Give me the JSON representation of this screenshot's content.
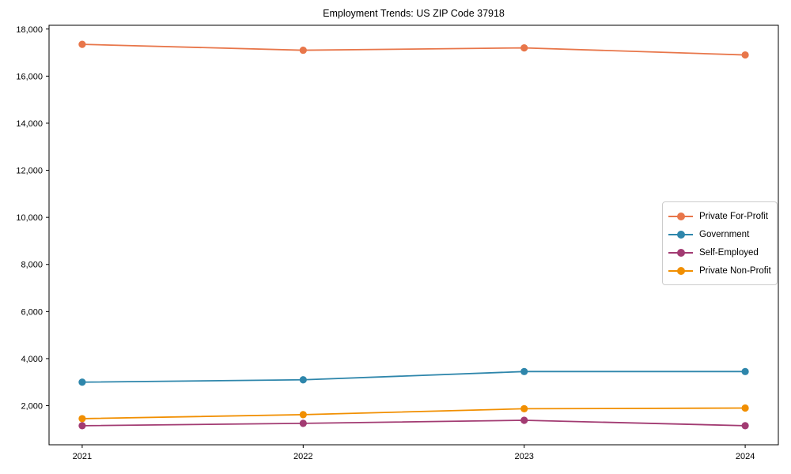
{
  "chart_data": {
    "type": "line",
    "title": "Employment Trends: US ZIP Code 37918",
    "xlabel": "",
    "ylabel": "",
    "x": [
      2021,
      2022,
      2023,
      2024
    ],
    "x_tick_labels": [
      "2021",
      "2022",
      "2023",
      "2024"
    ],
    "y_ticks": [
      2000,
      4000,
      6000,
      8000,
      10000,
      12000,
      14000,
      16000,
      18000
    ],
    "y_tick_labels": [
      "2,000",
      "4,000",
      "6,000",
      "8,000",
      "10,000",
      "12,000",
      "14,000",
      "16,000",
      "18,000"
    ],
    "xlim": [
      2020.85,
      2024.15
    ],
    "ylim": [
      340,
      18160
    ],
    "grid": false,
    "legend_position": "center right",
    "marker": "circle",
    "series": [
      {
        "name": "Private For-Profit",
        "color": "#E8764A",
        "values": [
          17350,
          17100,
          17200,
          16900
        ]
      },
      {
        "name": "Government",
        "color": "#2E86AB",
        "values": [
          3000,
          3100,
          3450,
          3450
        ]
      },
      {
        "name": "Self-Employed",
        "color": "#A23B72",
        "values": [
          1150,
          1250,
          1380,
          1150
        ]
      },
      {
        "name": "Private Non-Profit",
        "color": "#F18F01",
        "values": [
          1450,
          1620,
          1870,
          1900
        ]
      }
    ]
  }
}
